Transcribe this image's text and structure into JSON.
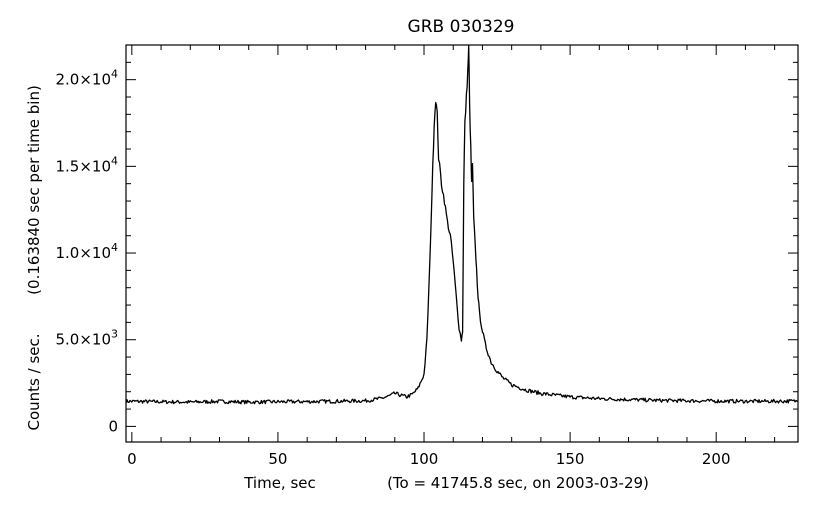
{
  "chart_data": {
    "type": "line",
    "title": "GRB 030329",
    "xlabel": "Time, sec",
    "xlabel_note": "(To = 41745.8 sec,  on 2003-03-29)",
    "ylabel": "Counts / sec.",
    "ylabel_note": "(0.163840 sec per time bin)",
    "xlim": [
      -2,
      228
    ],
    "ylim": [
      -900,
      22000
    ],
    "x_ticks": [
      0,
      50,
      100,
      150,
      200
    ],
    "x_tick_labels": [
      "0",
      "50",
      "100",
      "150",
      "200"
    ],
    "y_ticks": [
      0,
      5000,
      10000,
      15000,
      20000
    ],
    "y_tick_labels": [
      {
        "base": "0",
        "exp": ""
      },
      {
        "base": "5.0×10",
        "exp": "3"
      },
      {
        "base": "1.0×10",
        "exp": "4"
      },
      {
        "base": "1.5×10",
        "exp": "4"
      },
      {
        "base": "2.0×10",
        "exp": "4"
      }
    ],
    "grid": false,
    "series": [
      {
        "x": [
          -2,
          10,
          20,
          30,
          40,
          50,
          60,
          70,
          80,
          85,
          88,
          90,
          92,
          94,
          96,
          98,
          100,
          101,
          102,
          103,
          103.5,
          104,
          104.5,
          105,
          106,
          107,
          108,
          109,
          110,
          111,
          112,
          112.8,
          113.2,
          113.6,
          114,
          114.5,
          115,
          115.3,
          115.6,
          116,
          116.3,
          116.6,
          117,
          117.5,
          118,
          118.5,
          119,
          120,
          121,
          122,
          123,
          125,
          127,
          130,
          135,
          140,
          150,
          160,
          170,
          180,
          190,
          200,
          210,
          220,
          228
        ],
        "y": [
          1450,
          1420,
          1400,
          1440,
          1400,
          1420,
          1430,
          1450,
          1480,
          1600,
          1750,
          1900,
          1800,
          1700,
          1850,
          2200,
          3000,
          5000,
          9500,
          15000,
          17500,
          18900,
          18000,
          15500,
          14000,
          13000,
          11800,
          11000,
          9500,
          7500,
          5700,
          5000,
          5500,
          14000,
          17500,
          19000,
          20500,
          22000,
          18500,
          16000,
          14000,
          15000,
          12000,
          10500,
          9000,
          7500,
          6500,
          5500,
          4700,
          4200,
          3700,
          3200,
          2800,
          2400,
          2100,
          1900,
          1700,
          1600,
          1550,
          1500,
          1480,
          1460,
          1450,
          1450,
          1460
        ]
      }
    ]
  }
}
